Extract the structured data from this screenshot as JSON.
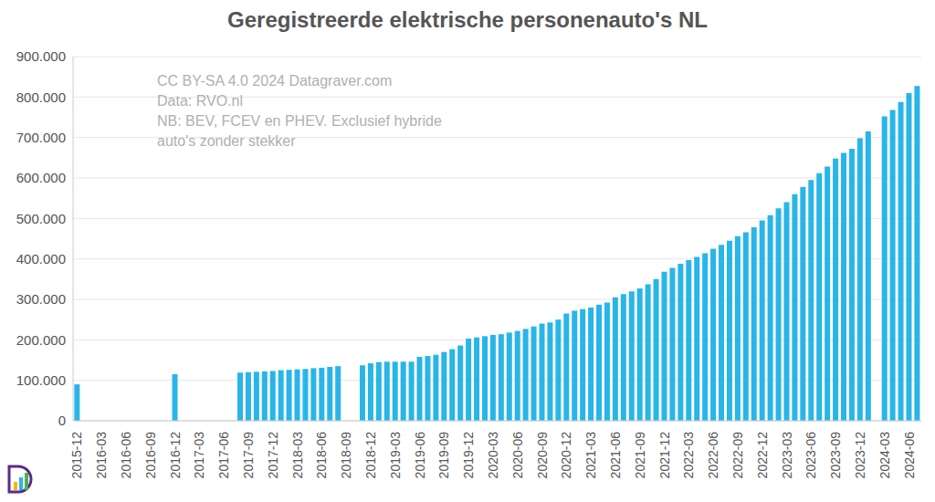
{
  "chart_data": {
    "type": "bar",
    "title": "Geregistreerde elektrische personenauto's NL",
    "annotation": [
      "CC BY-SA 4.0 2024 Datagraver.com",
      "Data: RVO.nl",
      "NB: BEV, FCEV en PHEV. Exclusief hybride",
      "auto's zonder stekker"
    ],
    "categories": [
      "2015-12",
      null,
      null,
      "2016-03",
      null,
      null,
      "2016-06",
      null,
      null,
      "2016-09",
      null,
      null,
      "2016-12",
      null,
      null,
      "2017-03",
      null,
      null,
      "2017-06",
      null,
      null,
      "2017-09",
      null,
      null,
      "2017-12",
      null,
      null,
      "2018-03",
      null,
      null,
      "2018-06",
      null,
      null,
      "2018-09",
      null,
      null,
      "2018-12",
      null,
      null,
      "2019-03",
      null,
      null,
      "2019-06",
      null,
      null,
      "2019-09",
      null,
      null,
      "2019-12",
      null,
      null,
      "2020-03",
      null,
      null,
      "2020-06",
      null,
      null,
      "2020-09",
      null,
      null,
      "2020-12",
      null,
      null,
      "2021-03",
      null,
      null,
      "2021-06",
      null,
      null,
      "2021-09",
      null,
      null,
      "2021-12",
      null,
      null,
      "2022-03",
      null,
      null,
      "2022-06",
      null,
      null,
      "2022-09",
      null,
      null,
      "2022-12",
      null,
      null,
      "2023-03",
      null,
      null,
      "2023-06",
      null,
      null,
      "2023-09",
      null,
      null,
      "2023-12",
      null,
      null,
      "2024-03",
      null,
      null,
      "2024-06",
      null
    ],
    "values": [
      90000,
      null,
      null,
      null,
      null,
      null,
      null,
      null,
      null,
      null,
      null,
      null,
      115000,
      null,
      null,
      null,
      null,
      null,
      null,
      null,
      119000,
      120000,
      121000,
      122000,
      123000,
      125000,
      126000,
      127000,
      128000,
      130000,
      131000,
      133000,
      135000,
      null,
      null,
      137000,
      142000,
      145000,
      146000,
      146000,
      146000,
      146000,
      158000,
      160000,
      163000,
      170000,
      177000,
      186000,
      203000,
      206000,
      209000,
      212000,
      214000,
      218000,
      222000,
      227000,
      233000,
      240000,
      243000,
      250000,
      265000,
      272000,
      276000,
      280000,
      287000,
      292000,
      305000,
      313000,
      320000,
      327000,
      337000,
      350000,
      368000,
      378000,
      388000,
      397000,
      405000,
      414000,
      425000,
      435000,
      445000,
      456000,
      466000,
      478000,
      495000,
      508000,
      525000,
      540000,
      560000,
      578000,
      595000,
      612000,
      628000,
      648000,
      662000,
      672000,
      698000,
      715000,
      null,
      752000,
      768000,
      788000,
      810000,
      827000
    ],
    "color": "#29b5e8",
    "ylim": [
      0,
      900000
    ],
    "yticks": [
      0,
      {
        "value": 100000,
        "label": "100.000"
      },
      {
        "value": 200000,
        "label": "200.000"
      },
      {
        "value": 300000,
        "label": "300.000"
      },
      {
        "value": 400000,
        "label": "400.000"
      },
      {
        "value": 500000,
        "label": "500.000"
      },
      {
        "value": 600000,
        "label": "600.000"
      },
      {
        "value": 700000,
        "label": "700.000"
      },
      {
        "value": 800000,
        "label": "800.000"
      },
      {
        "value": 900000,
        "label": "900.000"
      }
    ],
    "grid": true
  }
}
